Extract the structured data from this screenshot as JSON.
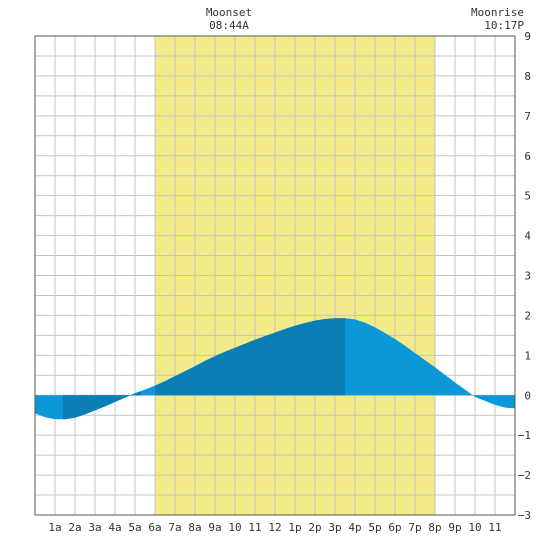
{
  "chart_data": {
    "type": "area",
    "title": "",
    "xlabel": "",
    "ylabel": "",
    "xlim": [
      0,
      24
    ],
    "ylim": [
      -3,
      9
    ],
    "grid": true,
    "x_tick_labels": [
      "1a",
      "2a",
      "3a",
      "4a",
      "5a",
      "6a",
      "7a",
      "8a",
      "9a",
      "10",
      "11",
      "12",
      "1p",
      "2p",
      "3p",
      "4p",
      "5p",
      "6p",
      "7p",
      "8p",
      "9p",
      "10",
      "11"
    ],
    "y_ticks": [
      -3,
      -2,
      -1,
      0,
      1,
      2,
      3,
      4,
      5,
      6,
      7,
      8,
      9
    ],
    "daylight": {
      "start": 6.0,
      "end": 20.0,
      "color": "#f3ea8a"
    },
    "annotations": [
      {
        "label": "Moonset",
        "time": "08:44A"
      },
      {
        "label": "Moonrise",
        "time": "10:17P"
      }
    ],
    "series": [
      {
        "x": [
          0,
          0.5,
          1,
          1.5,
          2,
          2.5,
          3,
          3.5,
          4,
          4.5,
          5,
          5.5,
          6,
          6.5,
          7,
          7.5,
          8,
          8.5,
          9,
          9.5,
          10,
          10.5,
          11,
          11.5,
          12,
          12.5,
          13,
          13.5,
          14,
          14.5,
          15,
          15.5,
          16,
          16.5,
          17,
          17.5,
          18,
          18.5,
          19,
          19.5,
          20,
          20.5,
          21,
          21.5,
          22,
          22.5,
          23,
          23.5,
          24
        ],
        "values": [
          -0.45,
          -0.55,
          -0.6,
          -0.6,
          -0.56,
          -0.48,
          -0.38,
          -0.28,
          -0.17,
          -0.06,
          0.05,
          0.14,
          0.24,
          0.35,
          0.48,
          0.6,
          0.73,
          0.86,
          0.98,
          1.09,
          1.19,
          1.29,
          1.39,
          1.48,
          1.57,
          1.66,
          1.74,
          1.81,
          1.87,
          1.91,
          1.93,
          1.93,
          1.9,
          1.82,
          1.7,
          1.56,
          1.41,
          1.24,
          1.06,
          0.88,
          0.7,
          0.51,
          0.32,
          0.14,
          -0.04,
          -0.14,
          -0.24,
          -0.31,
          -0.33
        ]
      }
    ],
    "colors": {
      "fill_light": "#0b97d8",
      "fill_dark": "#0a7eb5",
      "grid": "#c4c4c4",
      "frame": "#555555"
    },
    "dark_bands": [
      [
        1.4,
        5.3
      ],
      [
        6.0,
        15.5
      ]
    ]
  }
}
